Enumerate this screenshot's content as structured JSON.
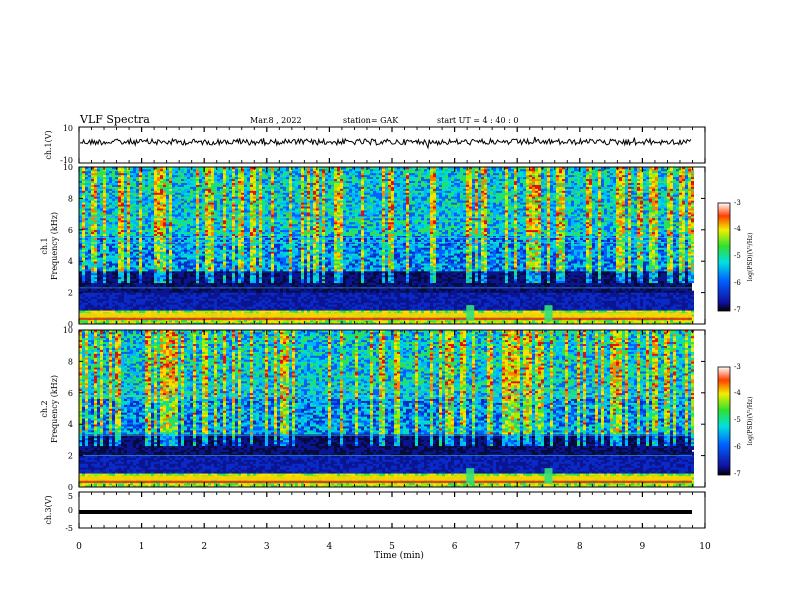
{
  "header": {
    "title": "VLF Spectra",
    "date": "Mar.8 , 2022",
    "station": "station= GAK",
    "start_ut": "start UT =  4 : 40 : 0"
  },
  "colors": {
    "background": "#ffffff",
    "spectrogram_low": "#0a0f7a",
    "spectrogram_high": "#d40000",
    "trace": "#000000"
  },
  "chart_data": [
    {
      "type": "line",
      "id": "ch1-waveform",
      "ylabel": "ch.1(V)",
      "ylim": [
        -10,
        10
      ],
      "yticks": [
        "10",
        "-10"
      ],
      "xlim": [
        0,
        10
      ],
      "series": [
        {
          "values": "noisy trace centred near 0 V, amplitude about ±1.5 V over full 0-9.8 min"
        }
      ]
    },
    {
      "type": "heatmap",
      "id": "ch1-spectrogram",
      "ylabel_top": "ch.1",
      "ylabel": "Frequency (kHz)",
      "ylim": [
        0,
        10
      ],
      "yticks": [
        "0",
        "2",
        "4",
        "6",
        "8",
        "10"
      ],
      "xlim": [
        0,
        9.8
      ],
      "colorbar": {
        "label": "log(PSD)(V²/Hz)",
        "ticks": [
          "-3",
          "-4",
          "-5",
          "-6",
          "-7"
        ],
        "range": [
          -7,
          -3
        ]
      }
    },
    {
      "type": "heatmap",
      "id": "ch2-spectrogram",
      "ylabel_top": "ch.2",
      "ylabel": "Frequency (kHz)",
      "ylim": [
        0,
        10
      ],
      "yticks": [
        "0",
        "2",
        "4",
        "6",
        "8",
        "10"
      ],
      "xlim": [
        0,
        9.8
      ],
      "colorbar": {
        "label": "log(PSD)(V²/Hz)",
        "ticks": [
          "-3",
          "-4",
          "-5",
          "-6",
          "-7"
        ],
        "range": [
          -7,
          -3
        ]
      }
    },
    {
      "type": "line",
      "id": "ch3-waveform",
      "ylabel": "ch.3(V)",
      "ylim": [
        -5,
        5
      ],
      "yticks": [
        "5",
        "0",
        "-5"
      ],
      "xlim": [
        0,
        10
      ],
      "series": [
        {
          "values": "constant near -1.2 V"
        }
      ]
    }
  ],
  "xaxis": {
    "label": "Time (min)",
    "ticks": [
      "0",
      "1",
      "2",
      "3",
      "4",
      "5",
      "6",
      "7",
      "8",
      "9",
      "10"
    ]
  }
}
